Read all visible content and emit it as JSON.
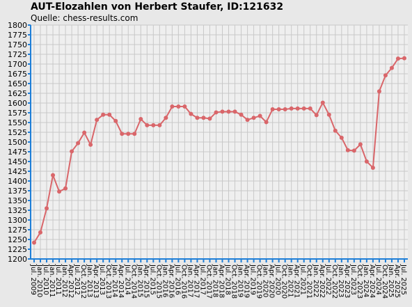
{
  "chart_data": {
    "type": "line",
    "title": "AUT-Elozahlen von Herbert Staufer, ID:121632",
    "subtitle": "Quelle: chess-results.com",
    "categories": [
      "Jul. 2009",
      "Jan. 2010",
      "Jul. 2010",
      "Jan. 2011",
      "Jul. 2011",
      "Jan. 2012",
      "Apr. 2012",
      "Jul. 2012",
      "Oct. 2012",
      "Jan. 2013",
      "Apr. 2013",
      "Jul. 2013",
      "Oct. 2013",
      "Jan. 2014",
      "Apr. 2014",
      "Jul. 2014",
      "Oct. 2014",
      "Jan. 2015",
      "Apr. 2015",
      "Jul. 2015",
      "Oct. 2015",
      "Jan. 2016",
      "Apr. 2016",
      "Jul. 2016",
      "Oct. 2016",
      "Jan. 2017",
      "Apr. 2017",
      "Jul. 2017",
      "Oct. 2017",
      "Jan. 2018",
      "Apr. 2018",
      "Jul. 2018",
      "Oct. 2018",
      "Jan. 2019",
      "Apr. 2019",
      "Jul. 2019",
      "Oct. 2019",
      "Jan. 2020",
      "Apr. 2020",
      "Jul. 2020",
      "Oct. 2020",
      "Jan. 2021",
      "Apr. 2021",
      "Jul. 2021",
      "Oct. 2021",
      "Jan. 2022",
      "Apr. 2022",
      "Jul. 2022",
      "Oct. 2022",
      "Jan. 2023",
      "Apr. 2023",
      "Jul. 2023",
      "Oct. 2023",
      "Jan. 2024",
      "Apr. 2024",
      "Jul. 2024",
      "Oct. 2024",
      "Jan. 2025",
      "Apr. 2025",
      "Jul. 2025"
    ],
    "values": [
      1242,
      1268,
      1330,
      1415,
      1373,
      1381,
      1476,
      1497,
      1524,
      1493,
      1557,
      1570,
      1570,
      1554,
      1521,
      1521,
      1521,
      1559,
      1543,
      1543,
      1543,
      1562,
      1591,
      1591,
      1591,
      1572,
      1562,
      1562,
      1560,
      1576,
      1578,
      1578,
      1578,
      1570,
      1557,
      1562,
      1567,
      1551,
      1584,
      1584,
      1584,
      1586,
      1586,
      1586,
      1586,
      1569,
      1601,
      1570,
      1529,
      1511,
      1479,
      1478,
      1494,
      1450,
      1434,
      1630,
      1671,
      1690,
      1714,
      1715
    ],
    "color": "#d9666a",
    "ylim": [
      1200,
      1800
    ],
    "yticks": [
      1200,
      1225,
      1250,
      1275,
      1300,
      1325,
      1350,
      1375,
      1400,
      1425,
      1450,
      1475,
      1500,
      1525,
      1550,
      1575,
      1600,
      1625,
      1650,
      1675,
      1700,
      1725,
      1750,
      1775,
      1800
    ],
    "grid": true
  }
}
